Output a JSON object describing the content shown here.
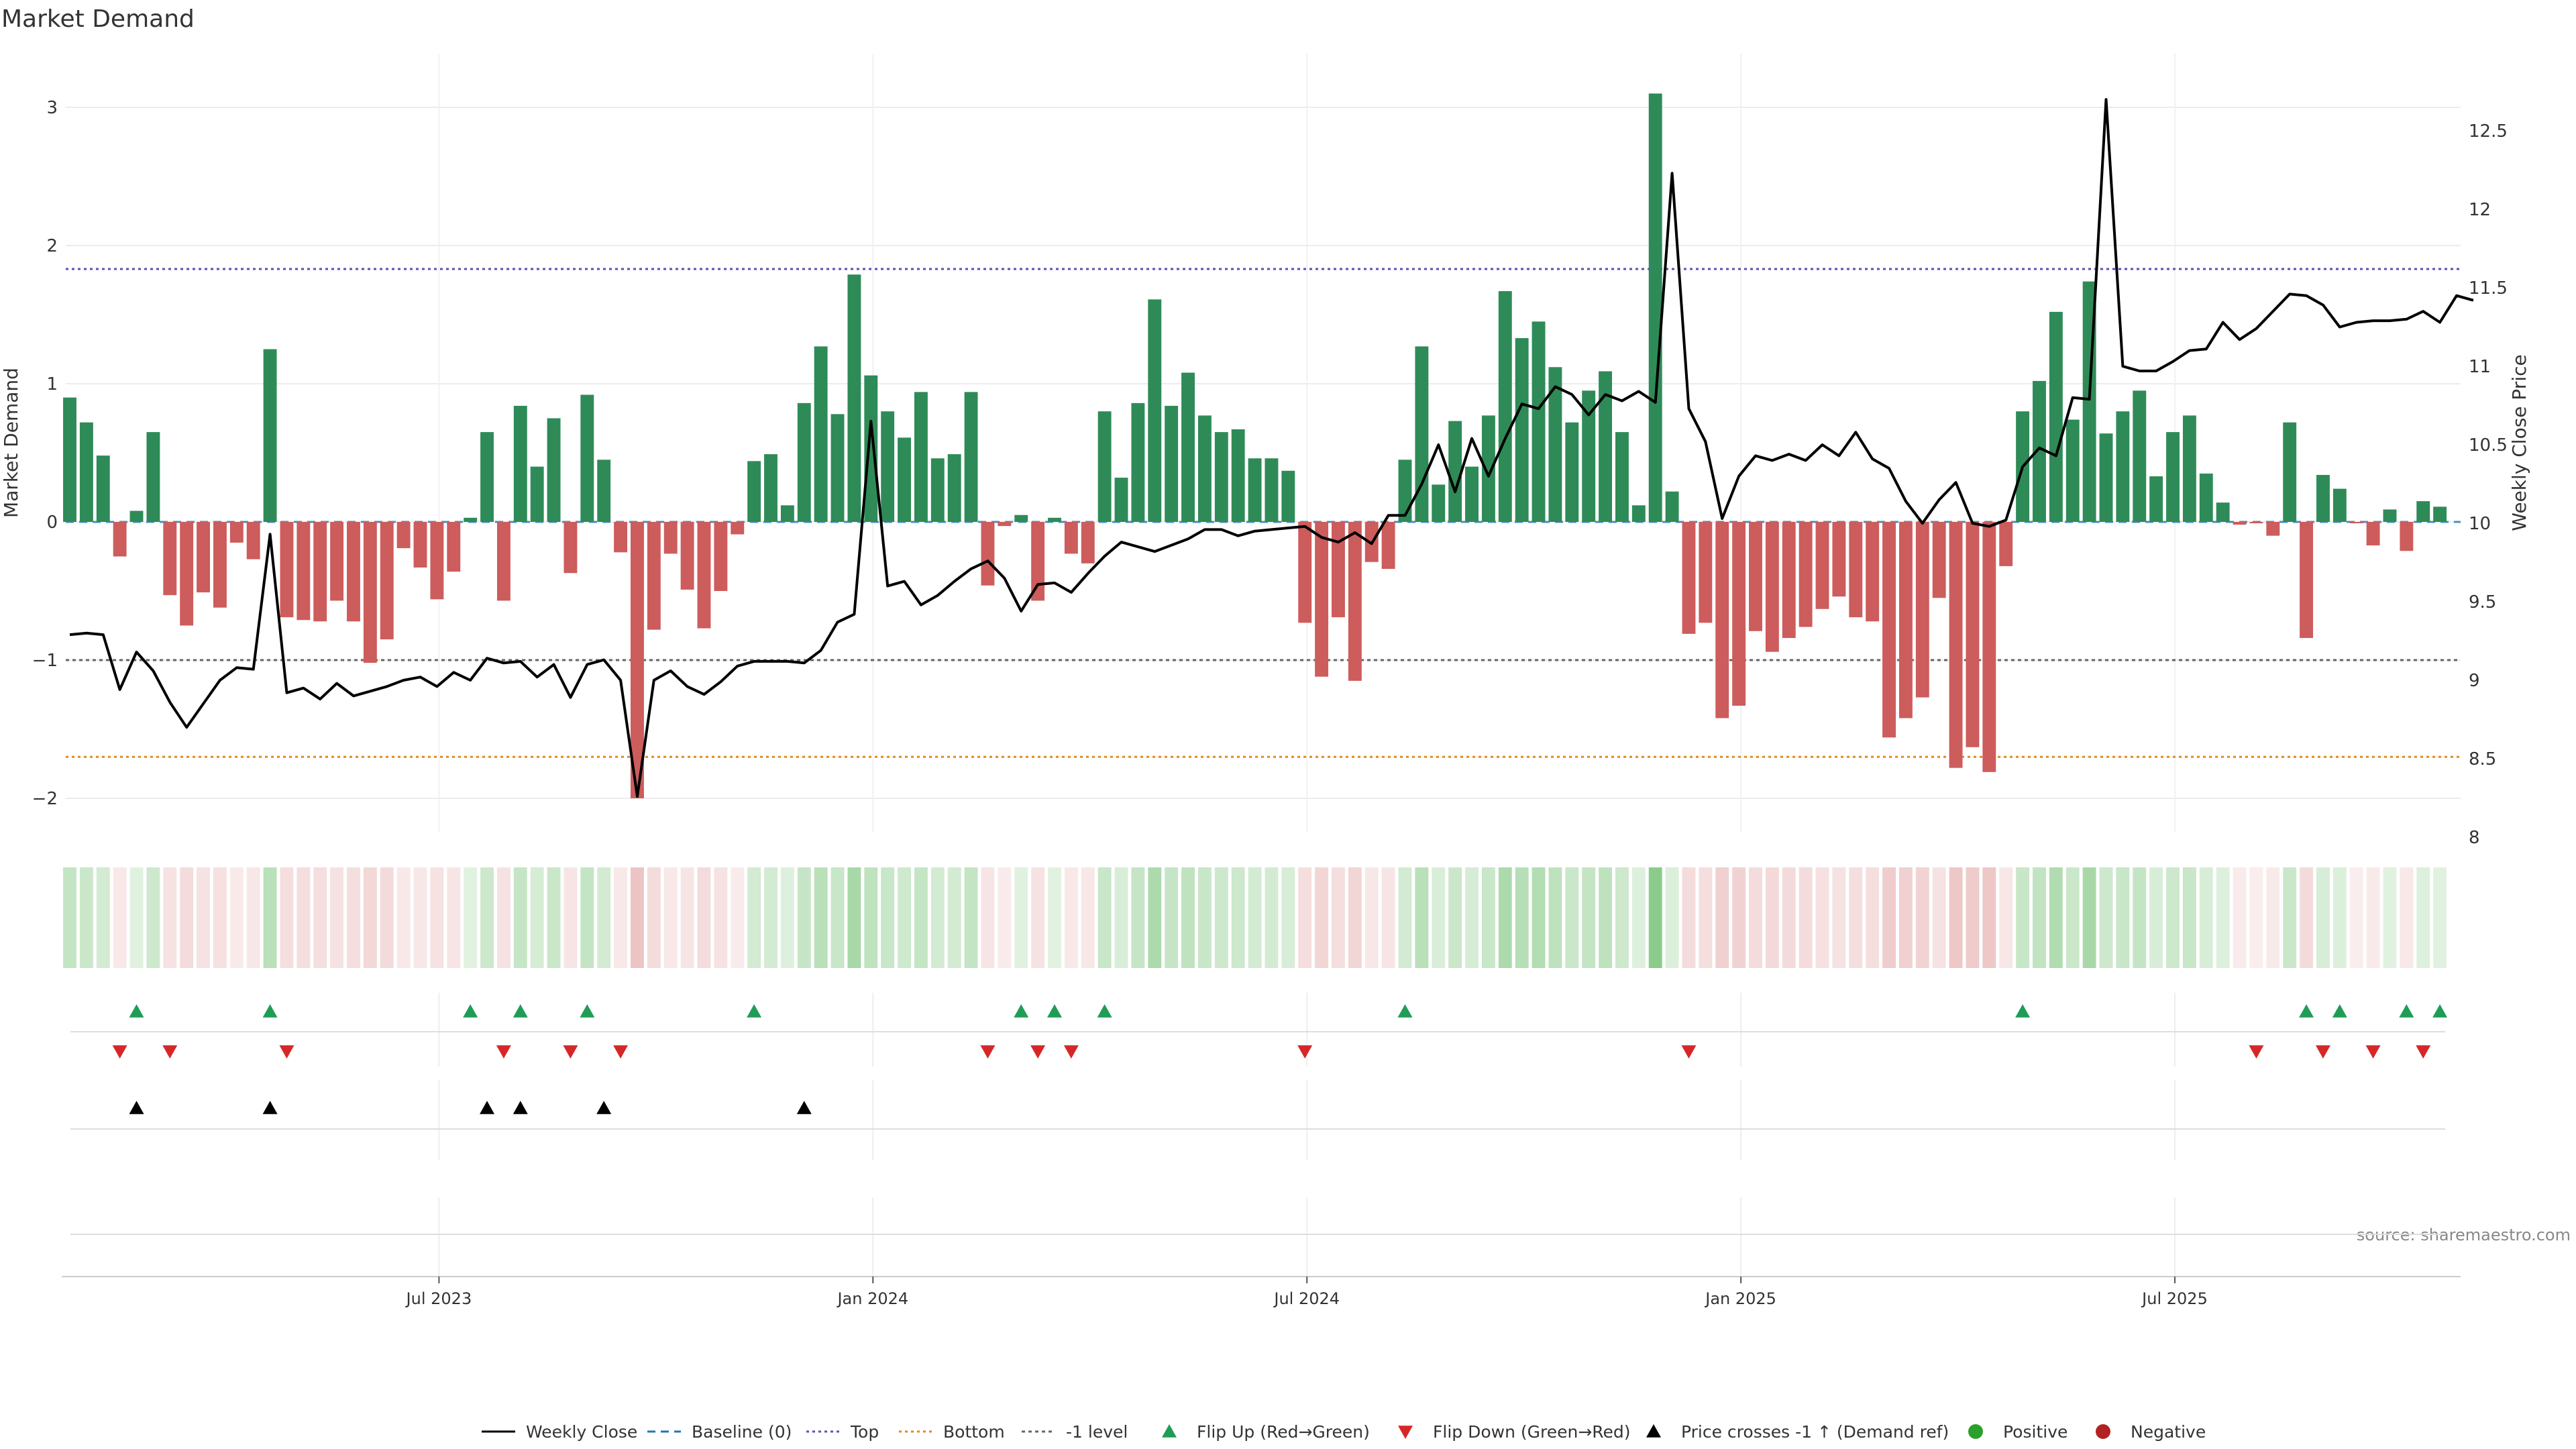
{
  "title": "Market Demand",
  "source_note": "source: sharemaestro.com",
  "colors": {
    "positive_bar": "#2e8b57",
    "negative_bar": "#cd5c5c",
    "price_line": "#000000",
    "top_line": "#5b4fb5",
    "bottom_line": "#e08a1e",
    "minus1_line": "#666666",
    "baseline": "#1f77b4",
    "flip_up": "#1f9d55",
    "flip_down": "#d62728",
    "cross": "#000000",
    "positive_dot": "#2ca02c",
    "negative_dot": "#b22222"
  },
  "chart_data": {
    "type": "bar",
    "title": "Market Demand",
    "ylabel": "Market Demand",
    "y2label": "Weekly Close Price",
    "ylim": [
      -2.25,
      3.35
    ],
    "y_ticks": [
      "3",
      "2",
      "1",
      "0",
      "−1",
      "−2"
    ],
    "y_tick_values": [
      3,
      2,
      1,
      0,
      -1,
      -2
    ],
    "y2lim": [
      8,
      12.85
    ],
    "y2_ticks": [
      "12.5",
      "12",
      "11.5",
      "11",
      "10.5",
      "10",
      "9.5",
      "9",
      "8.5",
      "8"
    ],
    "y2_tick_values": [
      12.5,
      12,
      11.5,
      11,
      10.5,
      10,
      9.5,
      9,
      8.5,
      8
    ],
    "x_ticks": [
      "Jul 2023",
      "Jan 2024",
      "Jul 2024",
      "Jan 2025",
      "Jul 2025"
    ],
    "x_tick_weeks": [
      22,
      48,
      74,
      100,
      126
    ],
    "reference_lines": {
      "top": 1.83,
      "bottom": -1.7,
      "minus_one": -1,
      "baseline": 0
    },
    "weeks": 144,
    "demand": [
      0.9,
      0.72,
      0.48,
      -0.25,
      0.08,
      0.65,
      -0.53,
      -0.75,
      -0.51,
      -0.62,
      -0.15,
      -0.27,
      1.25,
      -0.69,
      -0.71,
      -0.72,
      -0.57,
      -0.72,
      -1.02,
      -0.85,
      -0.19,
      -0.33,
      -0.56,
      -0.36,
      0.03,
      0.65,
      -0.57,
      0.84,
      0.4,
      0.75,
      -0.37,
      0.92,
      0.45,
      -0.22,
      -2.0,
      -0.78,
      -0.23,
      -0.49,
      -0.77,
      -0.5,
      -0.09,
      0.44,
      0.49,
      0.12,
      0.86,
      1.27,
      0.78,
      1.79,
      1.06,
      0.8,
      0.61,
      0.94,
      0.46,
      0.49,
      0.94,
      -0.46,
      -0.03,
      0.05,
      -0.57,
      0.03,
      -0.23,
      -0.3,
      0.8,
      0.32,
      0.86,
      1.61,
      0.84,
      1.08,
      0.77,
      0.65,
      0.67,
      0.46,
      0.46,
      0.37,
      -0.73,
      -1.12,
      -0.69,
      -1.15,
      -0.29,
      -0.34,
      0.45,
      1.27,
      0.27,
      0.73,
      0.4,
      0.77,
      1.67,
      1.33,
      1.45,
      1.12,
      0.72,
      0.95,
      1.09,
      0.65,
      0.12,
      3.1,
      0.22,
      -0.81,
      -0.73,
      -1.42,
      -1.33,
      -0.79,
      -0.94,
      -0.84,
      -0.76,
      -0.63,
      -0.54,
      -0.69,
      -0.72,
      -1.56,
      -1.42,
      -1.27,
      -0.55,
      -1.78,
      -1.63,
      -1.81,
      -0.32,
      0.8,
      1.02,
      1.52,
      0.74,
      1.74,
      0.64,
      0.8,
      0.95,
      0.33,
      0.65,
      0.77,
      0.35,
      0.14,
      -0.02,
      -0.01,
      -0.1,
      0.72,
      -0.84,
      0.34,
      0.24,
      -0.01,
      -0.17,
      0.09,
      -0.21,
      0.15,
      0.11
    ],
    "close": [
      9.29,
      9.3,
      9.29,
      8.94,
      9.18,
      9.06,
      8.86,
      8.7,
      8.85,
      9.0,
      9.08,
      9.07,
      9.93,
      8.92,
      8.95,
      8.88,
      8.98,
      8.9,
      8.93,
      8.96,
      9.0,
      9.02,
      8.96,
      9.05,
      9.0,
      9.14,
      9.11,
      9.12,
      9.02,
      9.1,
      8.89,
      9.1,
      9.13,
      9.0,
      8.26,
      9.0,
      9.06,
      8.96,
      8.91,
      8.99,
      9.09,
      9.12,
      9.12,
      9.12,
      9.11,
      9.19,
      9.37,
      9.42,
      10.65,
      9.6,
      9.63,
      9.48,
      9.54,
      9.63,
      9.71,
      9.76,
      9.65,
      9.44,
      9.61,
      9.62,
      9.56,
      9.68,
      9.79,
      9.88,
      9.85,
      9.82,
      9.86,
      9.9,
      9.96,
      9.96,
      9.92,
      9.95,
      9.96,
      9.97,
      9.98,
      9.91,
      9.88,
      9.94,
      9.87,
      10.05,
      10.05,
      10.25,
      10.5,
      10.2,
      10.54,
      10.3,
      10.54,
      10.76,
      10.73,
      10.87,
      10.82,
      10.69,
      10.82,
      10.78,
      10.84,
      10.77,
      12.23,
      10.73,
      10.52,
      10.03,
      10.3,
      10.43,
      10.4,
      10.44,
      10.4,
      10.5,
      10.43,
      10.58,
      10.41,
      10.35,
      10.14,
      10.0,
      10.15,
      10.26,
      10.0,
      9.98,
      10.02,
      10.36,
      10.48,
      10.43,
      10.8,
      10.79,
      12.7,
      11.0,
      10.97,
      10.97,
      11.03,
      11.1,
      11.11,
      11.28,
      11.17,
      11.24,
      11.35,
      11.46,
      11.45,
      11.39,
      11.25,
      11.28,
      11.29,
      11.29,
      11.3,
      11.35,
      11.28,
      11.45,
      11.42
    ],
    "flip_up_weeks": [
      4,
      12,
      24,
      27,
      31,
      41,
      57,
      59,
      62,
      80,
      117,
      134,
      136,
      140,
      142
    ],
    "flip_down_weeks": [
      3,
      6,
      13,
      26,
      30,
      33,
      55,
      58,
      60,
      74,
      97,
      131,
      135,
      138,
      141
    ],
    "price_cross_weeks": [
      4,
      12,
      25,
      27,
      32,
      44
    ],
    "legend": [
      "Weekly Close",
      "Baseline (0)",
      "Top",
      "Bottom",
      "-1 level",
      "Flip Up (Red→Green)",
      "Flip Down (Green→Red)",
      "Price crosses -1 ↑ (Demand ref)",
      "Positive",
      "Negative"
    ]
  }
}
